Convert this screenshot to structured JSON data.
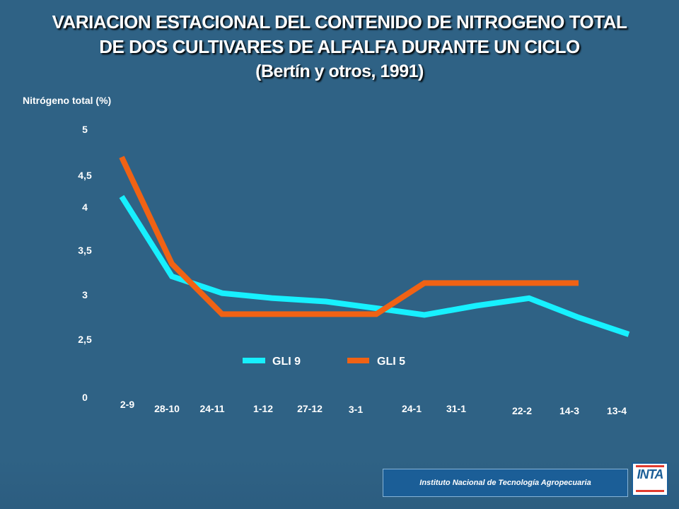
{
  "title": {
    "line1": "VARIACION ESTACIONAL DEL CONTENIDO DE NITROGENO TOTAL",
    "line2": "DE DOS CULTIVARES DE ALFALFA DURANTE UN CICLO",
    "line3": "(Bertín y otros, 1991)"
  },
  "footer": {
    "institution": "Instituto Nacional de Tecnología Agropecuaria",
    "logo_text": "INTA"
  },
  "colors": {
    "background": "#2f6285",
    "gli9": "#17f0ff",
    "gli5": "#f06214",
    "text": "#ffffff",
    "footer_box": "#1b5e97"
  },
  "chart_data": {
    "type": "line",
    "title": "VARIACION ESTACIONAL DEL CONTENIDO DE NITROGENO TOTAL DE DOS CULTIVARES DE ALFALFA DURANTE UN CICLO (Bertín y otros, 1991)",
    "xlabel": "",
    "ylabel": "Nitrógeno total (%)",
    "categories": [
      "2-9",
      "28-10",
      "24-11",
      "1-12",
      "27-12",
      "3-1",
      "24-1",
      "31-1",
      "22-2",
      "14-3",
      "13-4"
    ],
    "y_ticks": [
      "0",
      "2,5",
      "3",
      "3,5",
      "4",
      "4,5",
      "5"
    ],
    "y_axis_note": "broken axis: 0 shown below 2,5",
    "series": [
      {
        "name": "GLI 9",
        "color": "#17f0ff",
        "x": [
          "2-9",
          "28-10",
          "24-11",
          "1-12",
          "27-12",
          "3-1",
          "24-1",
          "31-1",
          "22-2",
          "14-3",
          "13-4"
        ],
        "values": [
          4.2,
          3.25,
          3.05,
          2.99,
          2.95,
          2.87,
          2.79,
          2.9,
          2.99,
          2.76,
          2.56
        ]
      },
      {
        "name": "GLI 5",
        "color": "#f06214",
        "x": [
          "2-9",
          "28-10",
          "24-11",
          "1-12",
          "27-12",
          "3-1",
          "24-1",
          "31-1",
          "22-2",
          "14-3"
        ],
        "values": [
          4.67,
          3.4,
          2.8,
          2.8,
          2.8,
          2.8,
          3.17,
          3.17,
          3.17,
          3.17
        ]
      }
    ],
    "legend_position": "bottom-center",
    "grid": false
  }
}
